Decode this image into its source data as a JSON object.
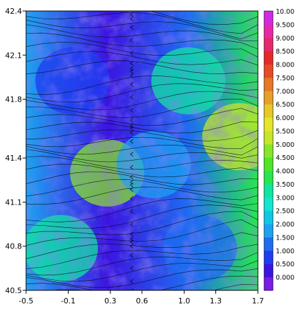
{
  "chart_data": {
    "type": "heatmap",
    "title": "",
    "xlabel": "",
    "ylabel": "",
    "xlim": [
      -0.5,
      1.7
    ],
    "ylim": [
      40.5,
      42.4
    ],
    "x_ticks": [
      "-0.5",
      "-0.1",
      "0.3",
      "0.6",
      "1.0",
      "1.3",
      "1.7"
    ],
    "y_ticks": [
      "40.5",
      "40.8",
      "41.1",
      "41.4",
      "41.8",
      "42.1",
      "42.4"
    ],
    "x_tick_values": [
      -0.5,
      -0.1,
      0.3,
      0.6,
      1.0,
      1.3,
      1.7
    ],
    "y_tick_values": [
      40.5,
      40.8,
      41.1,
      41.4,
      41.8,
      42.1,
      42.4
    ],
    "overlay": "streamlines",
    "legend_position": "right",
    "colorbar": {
      "levels": [
        "0.000",
        "0.500",
        "1.000",
        "1.500",
        "2.000",
        "2.500",
        "3.000",
        "3.500",
        "4.000",
        "4.500",
        "5.000",
        "5.500",
        "6.000",
        "6.500",
        "7.000",
        "7.500",
        "8.000",
        "8.500",
        "9.000",
        "9.500",
        "10.00"
      ],
      "colors": [
        "#7a1ce8",
        "#3c14e0",
        "#1e3cf0",
        "#1e6cf0",
        "#1ea2f0",
        "#10c8e6",
        "#14e6d0",
        "#10e6a0",
        "#28e650",
        "#50e628",
        "#88e628",
        "#c8e628",
        "#e6e628",
        "#e6c828",
        "#e6a028",
        "#e67828",
        "#e64a28",
        "#e62828",
        "#e6286c",
        "#e628a8",
        "#d228e6"
      ]
    },
    "field_summary": [
      {
        "region": "north-west",
        "value": 1.0
      },
      {
        "region": "north-east",
        "value": 3.5
      },
      {
        "region": "east",
        "value": 5.5
      },
      {
        "region": "center-west",
        "value": 5.0
      },
      {
        "region": "center",
        "value": 2.0
      },
      {
        "region": "south-west",
        "value": 3.5
      },
      {
        "region": "south-east",
        "value": 1.5
      }
    ]
  }
}
